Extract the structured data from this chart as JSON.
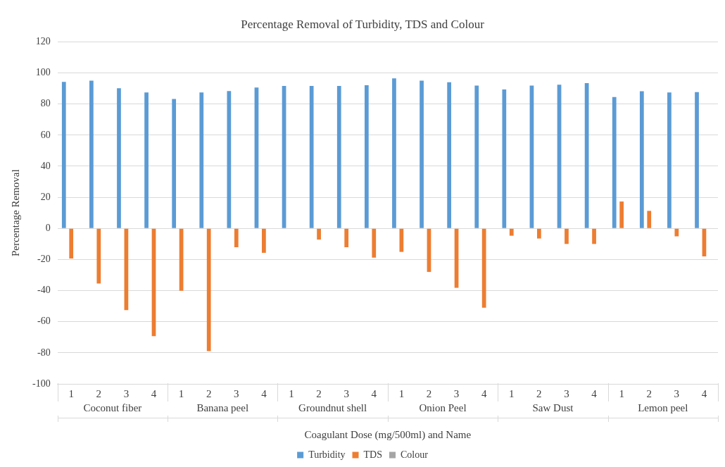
{
  "chart_data": {
    "type": "bar",
    "title": "Percentage Removal of Turbidity, TDS and Colour",
    "xlabel": "Coagulant Dose (mg/500ml) and Name",
    "ylabel": "Percentage Removal",
    "categories": [
      "1",
      "2",
      "3",
      "4",
      "1",
      "2",
      "3",
      "4",
      "1",
      "2",
      "3",
      "4",
      "1",
      "2",
      "3",
      "4",
      "1",
      "2",
      "3",
      "4",
      "1",
      "2",
      "3",
      "4"
    ],
    "annotations": [
      "Coconut fiber",
      "Banana peel",
      "Groundnut shell",
      "Onion Peel",
      "Saw Dust",
      "Lemon peel"
    ],
    "series": [
      {
        "name": "Turbidity",
        "color": "#5b9bd5",
        "values": [
          94.2,
          95,
          90.2,
          87.4,
          83.3,
          87.4,
          88.4,
          90.6,
          91.6,
          91.6,
          91.6,
          92.1,
          96.5,
          95,
          94,
          91.9,
          89.4,
          91.9,
          92.4,
          93.5,
          84.5,
          88.2,
          87.4,
          87.7
        ]
      },
      {
        "name": "TDS",
        "color": "#ed7d31",
        "values": [
          -19.4,
          -35.4,
          -52.5,
          -69.3,
          -40.1,
          -78.9,
          -12.1,
          -15.7,
          0,
          -7.2,
          -12.1,
          -18.8,
          -15.1,
          -28,
          -38.2,
          -51,
          -4.7,
          -6.5,
          -10,
          -10,
          17.3,
          11.3,
          -5.1,
          -18
        ]
      },
      {
        "name": "Colour",
        "color": "#a5a5a5",
        "values": [
          null,
          null,
          null,
          null,
          null,
          null,
          null,
          null,
          null,
          null,
          null,
          null,
          null,
          null,
          null,
          null,
          null,
          null,
          null,
          null,
          null,
          null,
          null,
          null
        ]
      }
    ],
    "ylim": [
      -100,
      120
    ],
    "yticks": [
      -100,
      -80,
      -60,
      -40,
      -20,
      0,
      20,
      40,
      60,
      80,
      100,
      120
    ],
    "grid": "y",
    "legend": "bottom"
  }
}
